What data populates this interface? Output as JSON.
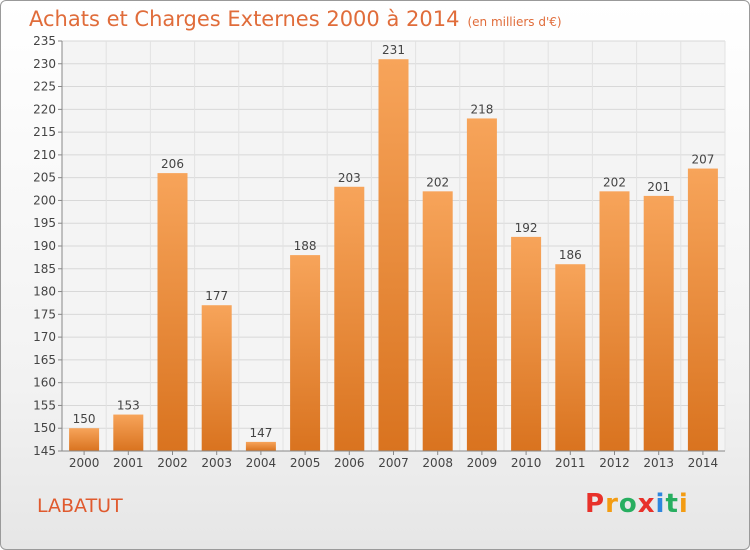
{
  "title": "Achats et Charges Externes 2000 à 2014",
  "subtitle": "(en milliers d'€)",
  "commune": "LABATUT",
  "logo": {
    "letters": [
      "P",
      "r",
      "o",
      "x",
      "i",
      "t",
      "i"
    ],
    "colors": [
      "#e8312a",
      "#f39c12",
      "#27ae60",
      "#e8312a",
      "#2e86de",
      "#27ae60",
      "#f39c12"
    ]
  },
  "colors": {
    "bar_top": "#f7a45a",
    "bar_bottom": "#d9731f",
    "title": "#e06c3a"
  },
  "chart_data": {
    "type": "bar",
    "categories": [
      "2000",
      "2001",
      "2002",
      "2003",
      "2004",
      "2005",
      "2006",
      "2007",
      "2008",
      "2009",
      "2010",
      "2011",
      "2012",
      "2013",
      "2014"
    ],
    "values": [
      150,
      153,
      206,
      177,
      147,
      188,
      203,
      231,
      202,
      218,
      192,
      186,
      202,
      201,
      207
    ],
    "ylim": [
      145,
      235
    ],
    "yticks": [
      145,
      150,
      155,
      160,
      165,
      170,
      175,
      180,
      185,
      190,
      195,
      200,
      205,
      210,
      215,
      220,
      225,
      230,
      235
    ],
    "grid": true,
    "data_labels": true
  }
}
